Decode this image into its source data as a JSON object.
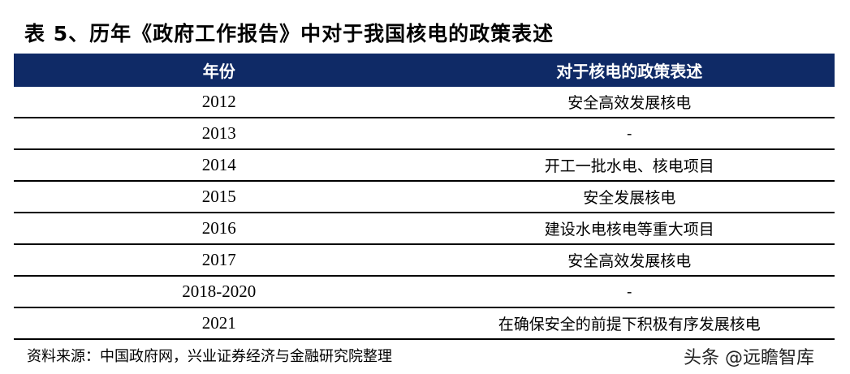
{
  "title": "表 5、历年《政府工作报告》中对于我国核电的政策表述",
  "table": {
    "headers": [
      "年份",
      "对于核电的政策表述"
    ],
    "rows": [
      {
        "year": "2012",
        "policy": "安全高效发展核电"
      },
      {
        "year": "2013",
        "policy": "-"
      },
      {
        "year": "2014",
        "policy": "开工一批水电、核电项目"
      },
      {
        "year": "2015",
        "policy": "安全发展核电"
      },
      {
        "year": "2016",
        "policy": "建设水电核电等重大项目"
      },
      {
        "year": "2017",
        "policy": "安全高效发展核电"
      },
      {
        "year": "2018-2020",
        "policy": "-"
      },
      {
        "year": "2021",
        "policy": "在确保安全的前提下积极有序发展核电"
      }
    ],
    "header_color": "#0f2a66"
  },
  "source": "资料来源：中国政府网，兴业证券经济与金融研究院整理",
  "watermark": "头条 @远瞻智库"
}
